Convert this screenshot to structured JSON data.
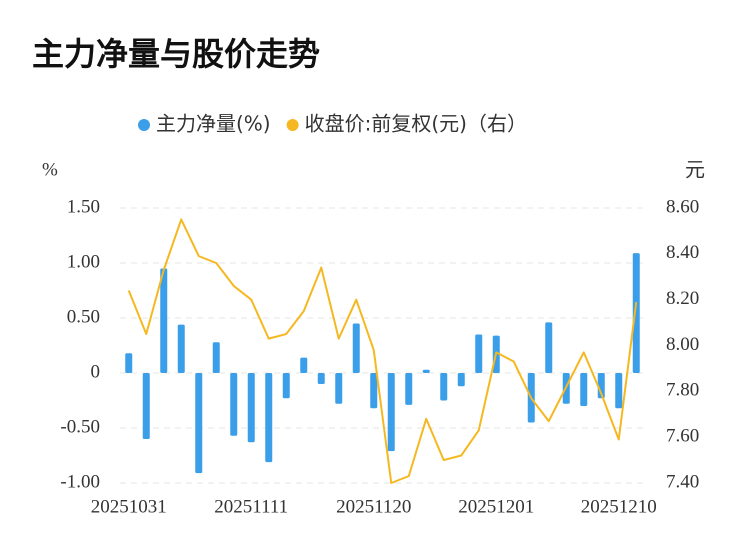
{
  "chart_data": {
    "type": "bar-line",
    "title": "主力净量与股价走势",
    "ylabel": "%",
    "y2label": "元",
    "categories": [
      "20251031",
      null,
      null,
      null,
      null,
      null,
      null,
      "20251111",
      null,
      null,
      null,
      null,
      null,
      null,
      "20251120",
      null,
      null,
      null,
      null,
      null,
      null,
      "20251201",
      null,
      null,
      null,
      null,
      null,
      null,
      "20251210",
      null
    ],
    "series": [
      {
        "name": "主力净量(%)",
        "color": "#3a9ee8",
        "type": "bar",
        "values": [
          0.18,
          -0.6,
          0.95,
          0.44,
          -0.91,
          0.28,
          -0.57,
          -0.63,
          -0.81,
          -0.23,
          0.14,
          -0.1,
          -0.28,
          0.45,
          -0.32,
          -0.71,
          -0.29,
          0.03,
          -0.25,
          -0.12,
          0.35,
          0.34,
          0,
          -0.45,
          0.46,
          -0.28,
          -0.3,
          -0.23,
          -0.32,
          1.09
        ]
      },
      {
        "name": "收盘价:前复权(元)（右）",
        "color": "#f5b820",
        "type": "line",
        "axis": "y2",
        "values": [
          8.24,
          8.05,
          8.33,
          8.55,
          8.39,
          8.36,
          8.26,
          8.2,
          8.03,
          8.05,
          8.15,
          8.34,
          8.03,
          8.2,
          7.98,
          7.4,
          7.43,
          7.68,
          7.5,
          7.52,
          7.63,
          7.97,
          7.93,
          7.77,
          7.67,
          7.82,
          7.97,
          7.79,
          7.59,
          8.19
        ]
      }
    ],
    "ylim": [
      -1,
      1.5
    ],
    "yticks": [
      {
        "value": 1.5,
        "label": "1.50"
      },
      {
        "value": 1,
        "label": "1.00"
      },
      {
        "value": 0.5,
        "label": "0.50"
      },
      0,
      {
        "value": -0.5,
        "label": "-0.50"
      },
      {
        "value": -1,
        "label": "-1.00"
      }
    ],
    "y2lim": [
      7.4,
      8.6
    ],
    "y2ticks": [
      {
        "value": 8.6,
        "label": "8.60"
      },
      {
        "value": 8.4,
        "label": "8.40"
      },
      {
        "value": 8.2,
        "label": "8.20"
      },
      {
        "value": 8,
        "label": "8.00"
      },
      {
        "value": 7.8,
        "label": "7.80"
      },
      {
        "value": 7.6,
        "label": "7.60"
      },
      {
        "value": 7.4,
        "label": "7.40"
      }
    ],
    "grid": true
  }
}
